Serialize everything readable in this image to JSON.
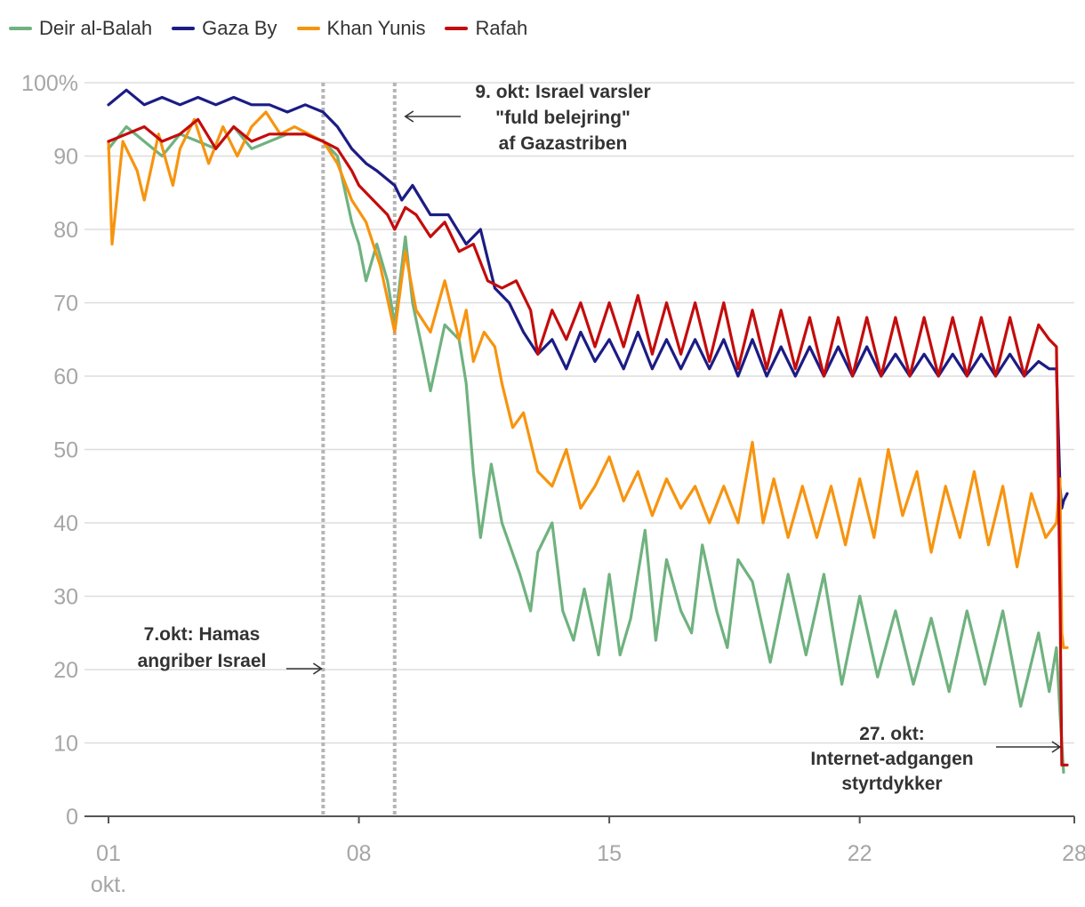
{
  "chart_data": {
    "type": "line",
    "x_unit": "day of October",
    "xlim": [
      1,
      28.0
    ],
    "ylim": [
      0,
      100
    ],
    "y_ticks": [
      0,
      10,
      20,
      30,
      40,
      50,
      60,
      70,
      80,
      90,
      100
    ],
    "y_tick_labels": [
      "0",
      "10",
      "20",
      "30",
      "40",
      "50",
      "60",
      "70",
      "80",
      "90",
      "100%"
    ],
    "x_ticks": [
      1,
      8,
      15,
      22,
      28
    ],
    "x_tick_labels": [
      "01",
      "08",
      "15",
      "22",
      "28"
    ],
    "x_sublabel": "okt.",
    "grid": true,
    "legend_position": "top-left",
    "series": [
      {
        "name": "Deir al-Balah",
        "color": "#6fb27f",
        "points": [
          [
            1,
            91
          ],
          [
            1.5,
            94
          ],
          [
            2,
            92
          ],
          [
            2.5,
            90
          ],
          [
            3,
            93
          ],
          [
            3.5,
            92
          ],
          [
            4,
            91
          ],
          [
            4.5,
            94
          ],
          [
            5,
            91
          ],
          [
            5.5,
            92
          ],
          [
            6,
            93
          ],
          [
            6.5,
            93
          ],
          [
            7,
            92
          ],
          [
            7.4,
            90
          ],
          [
            7.8,
            81
          ],
          [
            8,
            78
          ],
          [
            8.2,
            73
          ],
          [
            8.5,
            78
          ],
          [
            8.8,
            73
          ],
          [
            9,
            67
          ],
          [
            9.3,
            79
          ],
          [
            9.5,
            70
          ],
          [
            9.8,
            63
          ],
          [
            10,
            58
          ],
          [
            10.4,
            67
          ],
          [
            10.8,
            65
          ],
          [
            11,
            59
          ],
          [
            11.2,
            47
          ],
          [
            11.4,
            38
          ],
          [
            11.7,
            48
          ],
          [
            12,
            40
          ],
          [
            12.5,
            33
          ],
          [
            12.8,
            28
          ],
          [
            13,
            36
          ],
          [
            13.4,
            40
          ],
          [
            13.7,
            28
          ],
          [
            14,
            24
          ],
          [
            14.3,
            31
          ],
          [
            14.7,
            22
          ],
          [
            15,
            33
          ],
          [
            15.3,
            22
          ],
          [
            15.6,
            27
          ],
          [
            16,
            39
          ],
          [
            16.3,
            24
          ],
          [
            16.6,
            35
          ],
          [
            17,
            28
          ],
          [
            17.3,
            25
          ],
          [
            17.6,
            37
          ],
          [
            18,
            28
          ],
          [
            18.3,
            23
          ],
          [
            18.6,
            35
          ],
          [
            19,
            32
          ],
          [
            19.5,
            21
          ],
          [
            20,
            33
          ],
          [
            20.5,
            22
          ],
          [
            21,
            33
          ],
          [
            21.5,
            18
          ],
          [
            22,
            30
          ],
          [
            22.5,
            19
          ],
          [
            23,
            28
          ],
          [
            23.5,
            18
          ],
          [
            24,
            27
          ],
          [
            24.5,
            17
          ],
          [
            25,
            28
          ],
          [
            25.5,
            18
          ],
          [
            26,
            28
          ],
          [
            26.5,
            15
          ],
          [
            27,
            25
          ],
          [
            27.3,
            17
          ],
          [
            27.5,
            23
          ],
          [
            27.6,
            14
          ],
          [
            27.7,
            6
          ]
        ]
      },
      {
        "name": "Gaza By",
        "color": "#1c1c85",
        "points": [
          [
            1,
            97
          ],
          [
            1.5,
            99
          ],
          [
            2,
            97
          ],
          [
            2.5,
            98
          ],
          [
            3,
            97
          ],
          [
            3.5,
            98
          ],
          [
            4,
            97
          ],
          [
            4.5,
            98
          ],
          [
            5,
            97
          ],
          [
            5.5,
            97
          ],
          [
            6,
            96
          ],
          [
            6.5,
            97
          ],
          [
            7,
            96
          ],
          [
            7.4,
            94
          ],
          [
            7.8,
            91
          ],
          [
            8.2,
            89
          ],
          [
            8.5,
            88
          ],
          [
            9,
            86
          ],
          [
            9.2,
            84
          ],
          [
            9.5,
            86
          ],
          [
            10,
            82
          ],
          [
            10.5,
            82
          ],
          [
            11,
            78
          ],
          [
            11.4,
            80
          ],
          [
            11.8,
            72
          ],
          [
            12.2,
            70
          ],
          [
            12.6,
            66
          ],
          [
            13,
            63
          ],
          [
            13.4,
            65
          ],
          [
            13.8,
            61
          ],
          [
            14.2,
            66
          ],
          [
            14.6,
            62
          ],
          [
            15,
            65
          ],
          [
            15.4,
            61
          ],
          [
            15.8,
            66
          ],
          [
            16.2,
            61
          ],
          [
            16.6,
            65
          ],
          [
            17,
            61
          ],
          [
            17.4,
            65
          ],
          [
            17.8,
            61
          ],
          [
            18.2,
            65
          ],
          [
            18.6,
            60
          ],
          [
            19,
            65
          ],
          [
            19.4,
            60
          ],
          [
            19.8,
            64
          ],
          [
            20.2,
            60
          ],
          [
            20.6,
            64
          ],
          [
            21,
            60
          ],
          [
            21.4,
            64
          ],
          [
            21.8,
            60
          ],
          [
            22.2,
            64
          ],
          [
            22.6,
            60
          ],
          [
            23,
            63
          ],
          [
            23.4,
            60
          ],
          [
            23.8,
            63
          ],
          [
            24.2,
            60
          ],
          [
            24.6,
            63
          ],
          [
            25,
            60
          ],
          [
            25.4,
            63
          ],
          [
            25.8,
            60
          ],
          [
            26.2,
            63
          ],
          [
            26.6,
            60
          ],
          [
            27,
            62
          ],
          [
            27.3,
            61
          ],
          [
            27.5,
            61
          ],
          [
            27.6,
            45
          ],
          [
            27.65,
            42
          ],
          [
            27.7,
            43
          ],
          [
            27.8,
            44
          ]
        ]
      },
      {
        "name": "Khan Yunis",
        "color": "#f7940f",
        "points": [
          [
            1,
            92
          ],
          [
            1.1,
            78
          ],
          [
            1.4,
            92
          ],
          [
            1.8,
            88
          ],
          [
            2,
            84
          ],
          [
            2.4,
            93
          ],
          [
            2.8,
            86
          ],
          [
            3,
            91
          ],
          [
            3.4,
            95
          ],
          [
            3.8,
            89
          ],
          [
            4.2,
            94
          ],
          [
            4.6,
            90
          ],
          [
            5,
            94
          ],
          [
            5.4,
            96
          ],
          [
            5.8,
            93
          ],
          [
            6.2,
            94
          ],
          [
            6.6,
            93
          ],
          [
            7,
            92
          ],
          [
            7.4,
            89
          ],
          [
            7.8,
            84
          ],
          [
            8.2,
            81
          ],
          [
            8.6,
            75
          ],
          [
            9,
            66
          ],
          [
            9.3,
            77
          ],
          [
            9.6,
            69
          ],
          [
            10,
            66
          ],
          [
            10.4,
            73
          ],
          [
            10.8,
            65
          ],
          [
            11,
            69
          ],
          [
            11.2,
            62
          ],
          [
            11.5,
            66
          ],
          [
            11.8,
            64
          ],
          [
            12,
            59
          ],
          [
            12.3,
            53
          ],
          [
            12.6,
            55
          ],
          [
            13,
            47
          ],
          [
            13.4,
            45
          ],
          [
            13.8,
            50
          ],
          [
            14.2,
            42
          ],
          [
            14.6,
            45
          ],
          [
            15,
            49
          ],
          [
            15.4,
            43
          ],
          [
            15.8,
            47
          ],
          [
            16.2,
            41
          ],
          [
            16.6,
            46
          ],
          [
            17,
            42
          ],
          [
            17.4,
            45
          ],
          [
            17.8,
            40
          ],
          [
            18.2,
            45
          ],
          [
            18.6,
            40
          ],
          [
            19,
            51
          ],
          [
            19.3,
            40
          ],
          [
            19.6,
            46
          ],
          [
            20,
            38
          ],
          [
            20.4,
            45
          ],
          [
            20.8,
            38
          ],
          [
            21.2,
            45
          ],
          [
            21.6,
            37
          ],
          [
            22,
            46
          ],
          [
            22.4,
            38
          ],
          [
            22.8,
            50
          ],
          [
            23.2,
            41
          ],
          [
            23.6,
            47
          ],
          [
            24,
            36
          ],
          [
            24.4,
            45
          ],
          [
            24.8,
            38
          ],
          [
            25.2,
            47
          ],
          [
            25.6,
            37
          ],
          [
            26,
            45
          ],
          [
            26.4,
            34
          ],
          [
            26.8,
            44
          ],
          [
            27.2,
            38
          ],
          [
            27.5,
            40
          ],
          [
            27.6,
            46
          ],
          [
            27.65,
            25
          ],
          [
            27.7,
            23
          ],
          [
            27.8,
            23
          ]
        ]
      },
      {
        "name": "Rafah",
        "color": "#c40c0c",
        "points": [
          [
            1,
            92
          ],
          [
            1.5,
            93
          ],
          [
            2,
            94
          ],
          [
            2.5,
            92
          ],
          [
            3,
            93
          ],
          [
            3.5,
            95
          ],
          [
            4,
            91
          ],
          [
            4.5,
            94
          ],
          [
            5,
            92
          ],
          [
            5.5,
            93
          ],
          [
            6,
            93
          ],
          [
            6.5,
            93
          ],
          [
            7,
            92
          ],
          [
            7.4,
            91
          ],
          [
            7.8,
            88
          ],
          [
            8,
            86
          ],
          [
            8.4,
            84
          ],
          [
            8.8,
            82
          ],
          [
            9,
            80
          ],
          [
            9.3,
            83
          ],
          [
            9.6,
            82
          ],
          [
            10,
            79
          ],
          [
            10.4,
            81
          ],
          [
            10.8,
            77
          ],
          [
            11.2,
            78
          ],
          [
            11.6,
            73
          ],
          [
            12,
            72
          ],
          [
            12.4,
            73
          ],
          [
            12.8,
            69
          ],
          [
            13,
            63
          ],
          [
            13.4,
            69
          ],
          [
            13.8,
            65
          ],
          [
            14.2,
            70
          ],
          [
            14.6,
            64
          ],
          [
            15,
            70
          ],
          [
            15.4,
            64
          ],
          [
            15.8,
            71
          ],
          [
            16.2,
            63
          ],
          [
            16.6,
            70
          ],
          [
            17,
            63
          ],
          [
            17.4,
            70
          ],
          [
            17.8,
            62
          ],
          [
            18.2,
            70
          ],
          [
            18.6,
            61
          ],
          [
            19,
            69
          ],
          [
            19.4,
            61
          ],
          [
            19.8,
            69
          ],
          [
            20.2,
            61
          ],
          [
            20.6,
            68
          ],
          [
            21,
            60
          ],
          [
            21.4,
            68
          ],
          [
            21.8,
            60
          ],
          [
            22.2,
            68
          ],
          [
            22.6,
            60
          ],
          [
            23,
            68
          ],
          [
            23.4,
            60
          ],
          [
            23.8,
            68
          ],
          [
            24.2,
            60
          ],
          [
            24.6,
            68
          ],
          [
            25,
            60
          ],
          [
            25.4,
            68
          ],
          [
            25.8,
            60
          ],
          [
            26.2,
            68
          ],
          [
            26.6,
            60
          ],
          [
            27,
            67
          ],
          [
            27.3,
            65
          ],
          [
            27.5,
            64
          ],
          [
            27.6,
            30
          ],
          [
            27.65,
            7
          ],
          [
            27.8,
            7
          ]
        ]
      }
    ],
    "annotations": [
      {
        "x": 7,
        "lines": [
          "7.okt: Hamas",
          "angriber Israel"
        ]
      },
      {
        "x": 9,
        "lines": [
          "9. okt: Israel varsler",
          "\"fuld belejring\"",
          "af Gazastriben"
        ]
      },
      {
        "x": 27.7,
        "lines": [
          "27. okt:",
          "Internet-adgangen",
          "styrtdykker"
        ]
      }
    ]
  }
}
